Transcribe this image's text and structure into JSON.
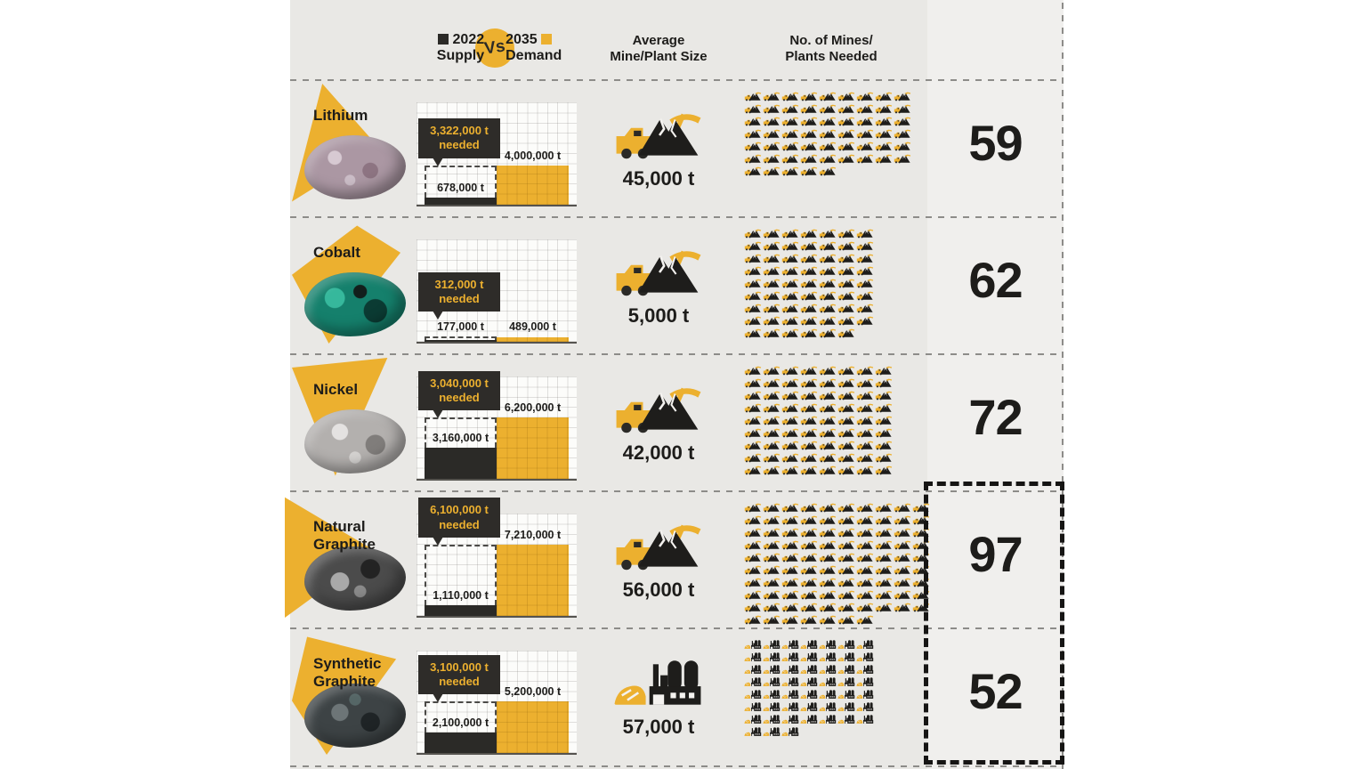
{
  "header": {
    "legend": {
      "year_supply": "2022",
      "supply_word": "Supply",
      "vs": "Vs",
      "year_demand": "2035",
      "demand_word": "Demand"
    },
    "col_size_line1": "Average",
    "col_size_line2": "Mine/Plant Size",
    "col_mines_line1": "No. of Mines/",
    "col_mines_line2": "Plants Needed"
  },
  "colors": {
    "accent": "#ECB02F",
    "dark": "#2B2A27",
    "paper": "#E9E8E5",
    "panel": "#F0EFED"
  },
  "rows": [
    {
      "name": "Lithium",
      "name2": "",
      "supply_t": 678000,
      "demand_t": 4000000,
      "supply_label": "678,000 t",
      "demand_label": "4,000,000 t",
      "needed_label": "3,322,000 t",
      "needed_suffix": "needed",
      "size_label": "45,000 t",
      "count": 59,
      "per_row": 9,
      "icon": "mine-icon"
    },
    {
      "name": "Cobalt",
      "name2": "",
      "supply_t": 177000,
      "demand_t": 489000,
      "supply_label": "177,000 t",
      "demand_label": "489,000 t",
      "needed_label": "312,000 t",
      "needed_suffix": "needed",
      "size_label": "5,000 t",
      "count": 62,
      "per_row": 7,
      "icon": "mine-icon"
    },
    {
      "name": "Nickel",
      "name2": "",
      "supply_t": 3160000,
      "demand_t": 6200000,
      "supply_label": "3,160,000 t",
      "demand_label": "6,200,000 t",
      "needed_label": "3,040,000 t",
      "needed_suffix": "needed",
      "size_label": "42,000 t",
      "count": 72,
      "per_row": 8,
      "icon": "mine-icon"
    },
    {
      "name": "Natural",
      "name2": "Graphite",
      "supply_t": 1110000,
      "demand_t": 7210000,
      "supply_label": "1,110,000 t",
      "demand_label": "7,210,000 t",
      "needed_label": "6,100,000 t",
      "needed_suffix": "needed",
      "size_label": "56,000 t",
      "count": 97,
      "per_row": 10,
      "icon": "mine-icon"
    },
    {
      "name": "Synthetic",
      "name2": "Graphite",
      "supply_t": 2100000,
      "demand_t": 5200000,
      "supply_label": "2,100,000 t",
      "demand_label": "5,200,000 t",
      "needed_label": "3,100,000 t",
      "needed_suffix": "needed",
      "size_label": "57,000 t",
      "count": 52,
      "per_row": 7,
      "icon": "factory-icon"
    }
  ],
  "chart_data": {
    "type": "bar",
    "categories": [
      "Lithium",
      "Cobalt",
      "Nickel",
      "Natural Graphite",
      "Synthetic Graphite"
    ],
    "series": [
      {
        "name": "2022 Supply (t)",
        "values": [
          678000,
          177000,
          3160000,
          1110000,
          2100000
        ]
      },
      {
        "name": "2035 Demand (t)",
        "values": [
          4000000,
          489000,
          6200000,
          7210000,
          5200000
        ]
      },
      {
        "name": "Additional needed (t)",
        "values": [
          3322000,
          312000,
          3040000,
          6100000,
          3100000
        ]
      },
      {
        "name": "Average mine/plant size (t)",
        "values": [
          45000,
          5000,
          42000,
          56000,
          57000
        ]
      },
      {
        "name": "No. of mines/plants needed",
        "values": [
          59,
          62,
          72,
          97,
          52
        ]
      }
    ],
    "legend": [
      "2022 Supply",
      "2035 Demand"
    ],
    "legend_position": "top",
    "grid": true,
    "title": "2022 Supply vs 2035 Demand"
  }
}
